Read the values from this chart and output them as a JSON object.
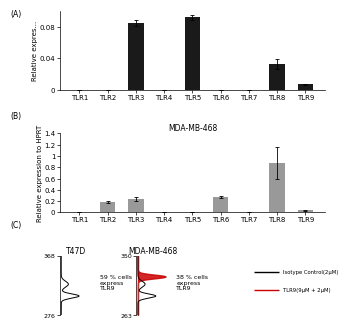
{
  "panel_A": {
    "label": "(A)",
    "categories": [
      "TLR1",
      "TLR2",
      "TLR3",
      "TLR4",
      "TLR5",
      "TLR6",
      "TLR7",
      "TLR8",
      "TLR9"
    ],
    "values": [
      0.0,
      0.0,
      0.085,
      0.0,
      0.092,
      0.0,
      0.0,
      0.033,
      0.007
    ],
    "errors": [
      0.0,
      0.0,
      0.004,
      0.0,
      0.003,
      0.0,
      0.0,
      0.006,
      0.001
    ],
    "bar_color": "#1a1a1a",
    "ylabel": "Relative expres...",
    "ylim": [
      0,
      0.1
    ],
    "yticks": [
      0,
      0.04,
      0.08
    ]
  },
  "panel_B": {
    "label": "(B)",
    "title": "MDA-MB-468",
    "categories": [
      "TLR1",
      "TLR2",
      "TLR3",
      "TLR4",
      "TLR5",
      "TLR6",
      "TLR7",
      "TLR8",
      "TLR9"
    ],
    "values": [
      0.0,
      0.18,
      0.24,
      0.01,
      0.01,
      0.27,
      0.0,
      0.88,
      0.04
    ],
    "errors": [
      0.0,
      0.02,
      0.03,
      0.005,
      0.005,
      0.02,
      0.0,
      0.28,
      0.01
    ],
    "bar_color": "#999999",
    "ylabel": "Relative expression to HPRT",
    "ylim": [
      0,
      1.4
    ],
    "yticks": [
      0,
      0.2,
      0.4,
      0.6,
      0.8,
      1.0,
      1.2,
      1.4
    ]
  },
  "panel_C": {
    "label": "(C)",
    "t47d_title": "T47D",
    "mda_title": "MDA-MB-468",
    "t47d_text": "59 % cells\nexpress\nTLR9",
    "mda_text": "38 % cells\nexpress\nTLR9",
    "t47d_ymin": "276",
    "t47d_ymax": "368",
    "mda_ymin": "263",
    "mda_ymax": "350",
    "legend_entries": [
      "Isotype Control(2µM)",
      "TLR9(9µM + 2µM)"
    ],
    "legend_colors": [
      "#000000",
      "#cc0000"
    ]
  },
  "background_color": "#ffffff",
  "font_size": 5.0
}
